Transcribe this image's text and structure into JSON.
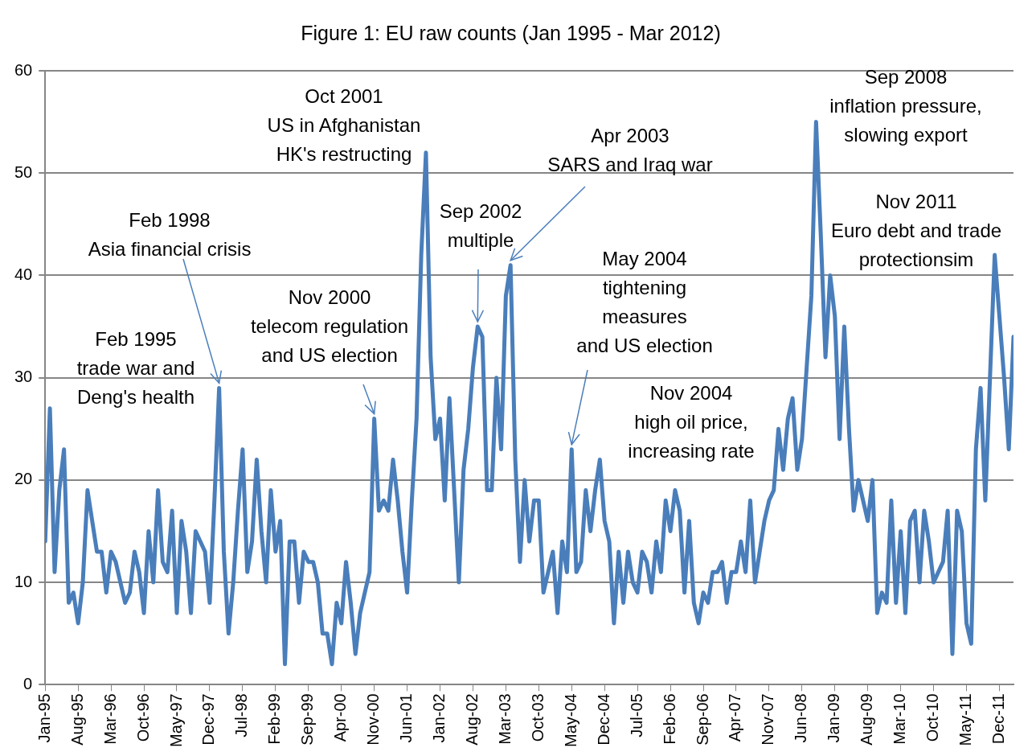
{
  "chart_data": {
    "type": "line",
    "title": "Figure 1: EU raw counts (Jan 1995 - Mar 2012)",
    "x": [
      "1995-01",
      "1995-02",
      "1995-03",
      "1995-04",
      "1995-05",
      "1995-06",
      "1995-07",
      "1995-08",
      "1995-09",
      "1995-10",
      "1995-11",
      "1995-12",
      "1996-01",
      "1996-02",
      "1996-03",
      "1996-04",
      "1996-05",
      "1996-06",
      "1996-07",
      "1996-08",
      "1996-09",
      "1996-10",
      "1996-11",
      "1996-12",
      "1997-01",
      "1997-02",
      "1997-03",
      "1997-04",
      "1997-05",
      "1997-06",
      "1997-07",
      "1997-08",
      "1997-09",
      "1997-10",
      "1997-11",
      "1997-12",
      "1998-01",
      "1998-02",
      "1998-03",
      "1998-04",
      "1998-05",
      "1998-06",
      "1998-07",
      "1998-08",
      "1998-09",
      "1998-10",
      "1998-11",
      "1998-12",
      "1999-01",
      "1999-02",
      "1999-03",
      "1999-04",
      "1999-05",
      "1999-06",
      "1999-07",
      "1999-08",
      "1999-09",
      "1999-10",
      "1999-11",
      "1999-12",
      "2000-01",
      "2000-02",
      "2000-03",
      "2000-04",
      "2000-05",
      "2000-06",
      "2000-07",
      "2000-08",
      "2000-09",
      "2000-10",
      "2000-11",
      "2000-12",
      "2001-01",
      "2001-02",
      "2001-03",
      "2001-04",
      "2001-05",
      "2001-06",
      "2001-07",
      "2001-08",
      "2001-09",
      "2001-10",
      "2001-11",
      "2001-12",
      "2002-01",
      "2002-02",
      "2002-03",
      "2002-04",
      "2002-05",
      "2002-06",
      "2002-07",
      "2002-08",
      "2002-09",
      "2002-10",
      "2002-11",
      "2002-12",
      "2003-01",
      "2003-02",
      "2003-03",
      "2003-04",
      "2003-05",
      "2003-06",
      "2003-07",
      "2003-08",
      "2003-09",
      "2003-10",
      "2003-11",
      "2003-12",
      "2004-01",
      "2004-02",
      "2004-03",
      "2004-04",
      "2004-05",
      "2004-06",
      "2004-07",
      "2004-08",
      "2004-09",
      "2004-10",
      "2004-11",
      "2004-12",
      "2005-01",
      "2005-02",
      "2005-03",
      "2005-04",
      "2005-05",
      "2005-06",
      "2005-07",
      "2005-08",
      "2005-09",
      "2005-10",
      "2005-11",
      "2005-12",
      "2006-01",
      "2006-02",
      "2006-03",
      "2006-04",
      "2006-05",
      "2006-06",
      "2006-07",
      "2006-08",
      "2006-09",
      "2006-10",
      "2006-11",
      "2006-12",
      "2007-01",
      "2007-02",
      "2007-03",
      "2007-04",
      "2007-05",
      "2007-06",
      "2007-07",
      "2007-08",
      "2007-09",
      "2007-10",
      "2007-11",
      "2007-12",
      "2008-01",
      "2008-02",
      "2008-03",
      "2008-04",
      "2008-05",
      "2008-06",
      "2008-07",
      "2008-08",
      "2008-09",
      "2008-10",
      "2008-11",
      "2008-12",
      "2009-01",
      "2009-02",
      "2009-03",
      "2009-04",
      "2009-05",
      "2009-06",
      "2009-07",
      "2009-08",
      "2009-09",
      "2009-10",
      "2009-11",
      "2009-12",
      "2010-01",
      "2010-02",
      "2010-03",
      "2010-04",
      "2010-05",
      "2010-06",
      "2010-07",
      "2010-08",
      "2010-09",
      "2010-10",
      "2010-11",
      "2010-12",
      "2011-01",
      "2011-02",
      "2011-03",
      "2011-04",
      "2011-05",
      "2011-06",
      "2011-07",
      "2011-08",
      "2011-09",
      "2011-10",
      "2011-11",
      "2011-12",
      "2012-01",
      "2012-02",
      "2012-03"
    ],
    "series": [
      {
        "color": "#4a7ebb",
        "values": [
          14,
          27,
          11,
          19,
          23,
          8,
          9,
          6,
          10,
          19,
          16,
          13,
          13,
          9,
          13,
          12,
          10,
          8,
          9,
          13,
          11,
          7,
          15,
          10,
          19,
          12,
          11,
          17,
          7,
          16,
          13,
          7,
          15,
          14,
          13,
          8,
          18,
          29,
          13,
          5,
          10,
          17,
          23,
          11,
          14,
          22,
          15,
          10,
          19,
          13,
          16,
          2,
          14,
          14,
          8,
          13,
          12,
          12,
          10,
          5,
          5,
          2,
          8,
          6,
          12,
          8,
          3,
          7,
          9,
          11,
          26,
          17,
          18,
          17,
          22,
          18,
          13,
          9,
          18,
          26,
          42,
          52,
          32,
          24,
          26,
          18,
          28,
          19,
          10,
          21,
          25,
          31,
          35,
          34,
          19,
          19,
          30,
          23,
          38,
          41,
          22,
          12,
          20,
          14,
          18,
          18,
          9,
          11,
          13,
          7,
          14,
          11,
          23,
          11,
          12,
          19,
          15,
          19,
          22,
          16,
          14,
          6,
          13,
          8,
          13,
          10,
          9,
          13,
          12,
          9,
          14,
          11,
          18,
          15,
          19,
          17,
          9,
          16,
          8,
          6,
          9,
          8,
          11,
          11,
          12,
          8,
          11,
          11,
          14,
          11,
          18,
          10,
          13,
          16,
          18,
          19,
          25,
          21,
          26,
          28,
          21,
          24,
          31,
          38,
          55,
          44,
          32,
          40,
          36,
          24,
          35,
          25,
          17,
          20,
          18,
          16,
          20,
          7,
          9,
          8,
          18,
          8,
          15,
          7,
          16,
          17,
          10,
          17,
          14,
          10,
          11,
          12,
          17,
          3,
          17,
          15,
          6,
          4,
          23,
          29,
          18,
          30,
          42,
          36,
          30,
          23,
          34
        ]
      }
    ],
    "xlim": [
      "1995-01",
      "2012-03"
    ],
    "xticks": [
      {
        "value": "1995-01",
        "label": "Jan-95"
      },
      {
        "value": "1995-08",
        "label": "Aug-95"
      },
      {
        "value": "1996-03",
        "label": "Mar-96"
      },
      {
        "value": "1996-10",
        "label": "Oct-96"
      },
      {
        "value": "1997-05",
        "label": "May-97"
      },
      {
        "value": "1997-12",
        "label": "Dec-97"
      },
      {
        "value": "1998-07",
        "label": "Jul-98"
      },
      {
        "value": "1999-02",
        "label": "Feb-99"
      },
      {
        "value": "1999-09",
        "label": "Sep-99"
      },
      {
        "value": "2000-04",
        "label": "Apr-00"
      },
      {
        "value": "2000-11",
        "label": "Nov-00"
      },
      {
        "value": "2001-06",
        "label": "Jun-01"
      },
      {
        "value": "2002-01",
        "label": "Jan-02"
      },
      {
        "value": "2002-08",
        "label": "Aug-02"
      },
      {
        "value": "2003-03",
        "label": "Mar-03"
      },
      {
        "value": "2003-10",
        "label": "Oct-03"
      },
      {
        "value": "2004-05",
        "label": "May-04"
      },
      {
        "value": "2004-12",
        "label": "Dec-04"
      },
      {
        "value": "2005-07",
        "label": "Jul-05"
      },
      {
        "value": "2006-02",
        "label": "Feb-06"
      },
      {
        "value": "2006-09",
        "label": "Sep-06"
      },
      {
        "value": "2007-04",
        "label": "Apr-07"
      },
      {
        "value": "2007-11",
        "label": "Nov-07"
      },
      {
        "value": "2008-06",
        "label": "Jun-08"
      },
      {
        "value": "2009-01",
        "label": "Jan-09"
      },
      {
        "value": "2009-08",
        "label": "Aug-09"
      },
      {
        "value": "2010-03",
        "label": "Mar-10"
      },
      {
        "value": "2010-10",
        "label": "Oct-10"
      },
      {
        "value": "2011-05",
        "label": "May-11"
      },
      {
        "value": "2011-12",
        "label": "Dec-11"
      }
    ],
    "ylim": [
      0,
      60
    ],
    "yticks": [
      0,
      10,
      20,
      30,
      40,
      50,
      60
    ],
    "grid": "y",
    "legend": false,
    "marker": "none",
    "line_style": "solid",
    "annotations": [
      "Feb 1995\ntrade war and\nDeng's health",
      {
        "text": "Feb 1998\nAsia financial crisis",
        "x": "1998-02",
        "y": 29
      },
      {
        "text": "Nov 2000\ntelecom regulation\nand US election",
        "x": "2000-11",
        "y": 26
      },
      "Oct 2001\nUS in Afghanistan\nHK's restructing",
      {
        "text": "Sep 2002\nmultiple",
        "x": "2002-09",
        "y": 35
      },
      {
        "text": "Apr 2003\nSARS and Iraq war",
        "x": "2003-04",
        "y": 41
      },
      {
        "text": "May 2004\ntightening\nmeasures\nand US election",
        "x": "2004-05",
        "y": 23
      },
      "Nov 2004\nhigh oil price,\nincreasing rate",
      "Sep 2008\ninflation pressure,\nslowing export",
      "Nov 2011\nEuro debt and trade\nprotectionsim"
    ]
  }
}
